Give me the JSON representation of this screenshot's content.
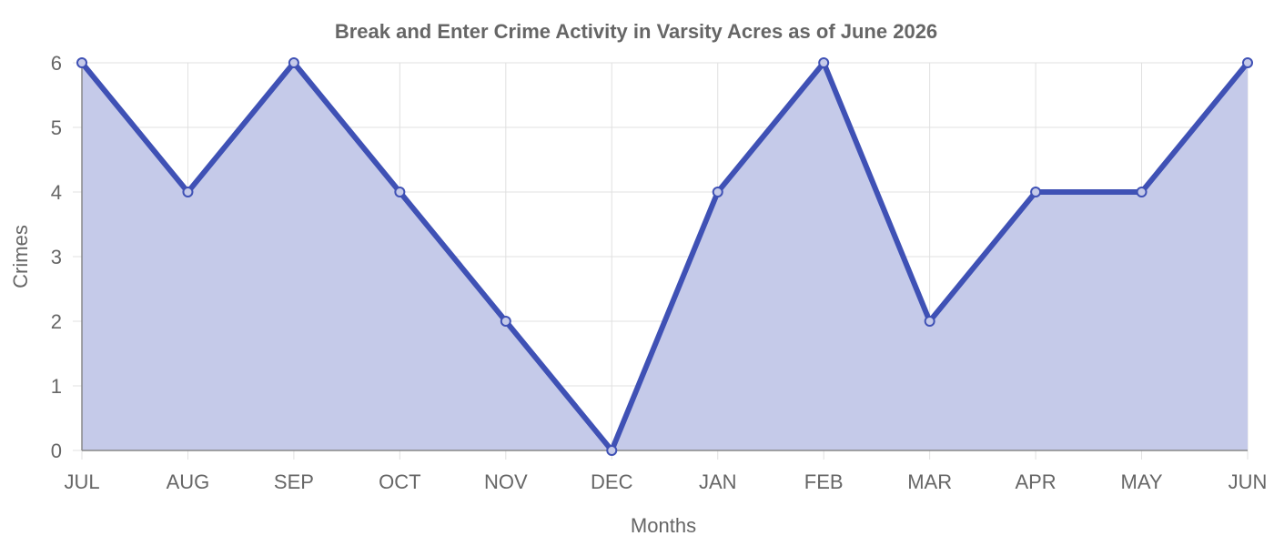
{
  "chart_data": {
    "type": "area",
    "title": "Break and Enter Crime Activity in Varsity Acres as of June 2026",
    "xlabel": "Months",
    "ylabel": "Crimes",
    "categories": [
      "JUL",
      "AUG",
      "SEP",
      "OCT",
      "NOV",
      "DEC",
      "JAN",
      "FEB",
      "MAR",
      "APR",
      "MAY",
      "JUN"
    ],
    "series": [
      {
        "values": [
          6,
          4,
          6,
          4,
          2,
          0,
          4,
          6,
          2,
          4,
          4,
          6
        ]
      }
    ],
    "ylim": [
      0,
      6
    ],
    "yticks": [
      "0",
      "1",
      "2",
      "3",
      "4",
      "5",
      "6"
    ],
    "grid": true,
    "legend": "none",
    "colors": {
      "line": "#3f51b5",
      "fill": "#c5cae9",
      "grid": "#e0e0e0",
      "axis": "#888888",
      "text": "#666666"
    }
  }
}
